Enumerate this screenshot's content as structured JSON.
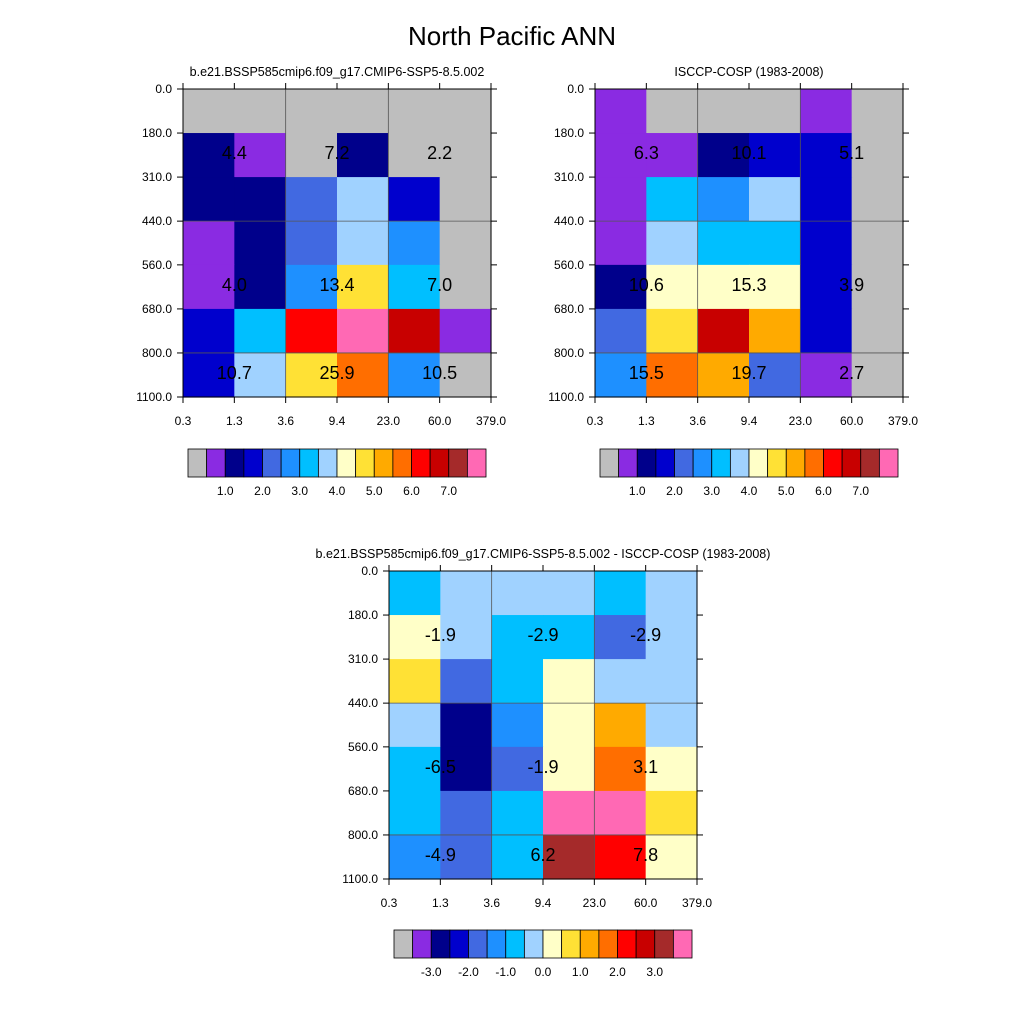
{
  "title": "North Pacific ANN",
  "x_tick_labels": [
    "0.3",
    "1.3",
    "3.6",
    "9.4",
    "23.0",
    "60.0",
    "379.0"
  ],
  "y_tick_labels": [
    "0.0",
    "180.0",
    "310.0",
    "440.0",
    "560.0",
    "680.0",
    "800.0",
    "1100.0"
  ],
  "abs_colormap": [
    "#bebebe",
    "#8a2be2",
    "#00008b",
    "#0000cd",
    "#4169e1",
    "#1e90ff",
    "#00bfff",
    "#a0d2ff",
    "#ffffc8",
    "#ffe135",
    "#ffaa00",
    "#ff6e00",
    "#ff0000",
    "#c80000",
    "#a52a2a",
    "#ff69b4"
  ],
  "diff_colormap": [
    "#bebebe",
    "#8a2be2",
    "#00008b",
    "#0000cd",
    "#4169e1",
    "#1e90ff",
    "#00bfff",
    "#a0d2ff",
    "#ffffc8",
    "#ffe135",
    "#ffaa00",
    "#ff6e00",
    "#ff0000",
    "#c80000",
    "#a52a2a",
    "#ff69b4"
  ],
  "chart_data": [
    {
      "type": "heatmap",
      "title": "b.e21.BSSP585cmip6.f09_g17.CMIP6-SSP5-8.5.002",
      "x_labels": [
        "0.3",
        "1.3",
        "3.6",
        "9.4",
        "23.0",
        "60.0",
        "379.0"
      ],
      "y_labels": [
        "0.0",
        "180.0",
        "310.0",
        "440.0",
        "560.0",
        "680.0",
        "800.0",
        "1100.0"
      ],
      "cell_colors": [
        [
          0,
          0,
          0,
          0,
          0,
          0
        ],
        [
          2,
          1,
          0,
          2,
          0,
          0
        ],
        [
          2,
          2,
          4,
          7,
          3,
          0
        ],
        [
          1,
          2,
          4,
          7,
          5,
          0
        ],
        [
          1,
          2,
          5,
          9,
          6,
          0
        ],
        [
          3,
          6,
          12,
          15,
          13,
          1
        ],
        [
          3,
          7,
          9,
          11,
          5,
          0
        ]
      ],
      "annotations": [
        {
          "row": 1,
          "col": 0,
          "text": "4.4"
        },
        {
          "row": 1,
          "col": 2,
          "text": "7.2"
        },
        {
          "row": 1,
          "col": 4,
          "text": "2.2"
        },
        {
          "row": 4,
          "col": 0,
          "text": "4.0"
        },
        {
          "row": 4,
          "col": 2,
          "text": "13.4"
        },
        {
          "row": 4,
          "col": 4,
          "text": "7.0"
        },
        {
          "row": 6,
          "col": 0,
          "text": "10.7"
        },
        {
          "row": 6,
          "col": 2,
          "text": "25.9"
        },
        {
          "row": 6,
          "col": 4,
          "text": "10.5"
        }
      ],
      "colorbar_labels": [
        "1.0",
        "2.0",
        "3.0",
        "4.0",
        "5.0",
        "6.0",
        "7.0"
      ]
    },
    {
      "type": "heatmap",
      "title": "ISCCP-COSP (1983-2008)",
      "x_labels": [
        "0.3",
        "1.3",
        "3.6",
        "9.4",
        "23.0",
        "60.0",
        "379.0"
      ],
      "y_labels": [
        "0.0",
        "180.0",
        "310.0",
        "440.0",
        "560.0",
        "680.0",
        "800.0",
        "1100.0"
      ],
      "cell_colors": [
        [
          1,
          0,
          0,
          0,
          1,
          0
        ],
        [
          1,
          1,
          2,
          3,
          3,
          0
        ],
        [
          1,
          6,
          5,
          7,
          3,
          0
        ],
        [
          1,
          7,
          6,
          6,
          3,
          0
        ],
        [
          2,
          8,
          8,
          8,
          3,
          0
        ],
        [
          4,
          9,
          13,
          10,
          3,
          0
        ],
        [
          5,
          11,
          10,
          4,
          1,
          0
        ]
      ],
      "annotations": [
        {
          "row": 1,
          "col": 0,
          "text": "6.3"
        },
        {
          "row": 1,
          "col": 2,
          "text": "10.1"
        },
        {
          "row": 1,
          "col": 4,
          "text": "5.1"
        },
        {
          "row": 4,
          "col": 0,
          "text": "10.6"
        },
        {
          "row": 4,
          "col": 2,
          "text": "15.3"
        },
        {
          "row": 4,
          "col": 4,
          "text": "3.9"
        },
        {
          "row": 6,
          "col": 0,
          "text": "15.5"
        },
        {
          "row": 6,
          "col": 2,
          "text": "19.7"
        },
        {
          "row": 6,
          "col": 4,
          "text": "2.7"
        }
      ],
      "colorbar_labels": [
        "1.0",
        "2.0",
        "3.0",
        "4.0",
        "5.0",
        "6.0",
        "7.0"
      ]
    },
    {
      "type": "heatmap",
      "title": "b.e21.BSSP585cmip6.f09_g17.CMIP6-SSP5-8.5.002 - ISCCP-COSP (1983-2008)",
      "x_labels": [
        "0.3",
        "1.3",
        "3.6",
        "9.4",
        "23.0",
        "60.0",
        "379.0"
      ],
      "y_labels": [
        "0.0",
        "180.0",
        "310.0",
        "440.0",
        "560.0",
        "680.0",
        "800.0",
        "1100.0"
      ],
      "cell_colors": [
        [
          6,
          7,
          7,
          7,
          6,
          7
        ],
        [
          8,
          7,
          6,
          6,
          4,
          7
        ],
        [
          9,
          4,
          6,
          8,
          7,
          7
        ],
        [
          7,
          2,
          5,
          8,
          10,
          7
        ],
        [
          6,
          2,
          4,
          8,
          11,
          8
        ],
        [
          6,
          4,
          6,
          15,
          15,
          9
        ],
        [
          5,
          4,
          6,
          14,
          12,
          8
        ]
      ],
      "annotations": [
        {
          "row": 1,
          "col": 0,
          "text": "-1.9"
        },
        {
          "row": 1,
          "col": 2,
          "text": "-2.9"
        },
        {
          "row": 1,
          "col": 4,
          "text": "-2.9"
        },
        {
          "row": 4,
          "col": 0,
          "text": "-6.5"
        },
        {
          "row": 4,
          "col": 2,
          "text": "-1.9"
        },
        {
          "row": 4,
          "col": 4,
          "text": "3.1"
        },
        {
          "row": 6,
          "col": 0,
          "text": "-4.9"
        },
        {
          "row": 6,
          "col": 2,
          "text": "6.2"
        },
        {
          "row": 6,
          "col": 4,
          "text": "7.8"
        }
      ],
      "colorbar_labels": [
        "-3.0",
        "-2.0",
        "-1.0",
        "0.0",
        "1.0",
        "2.0",
        "3.0"
      ]
    }
  ]
}
